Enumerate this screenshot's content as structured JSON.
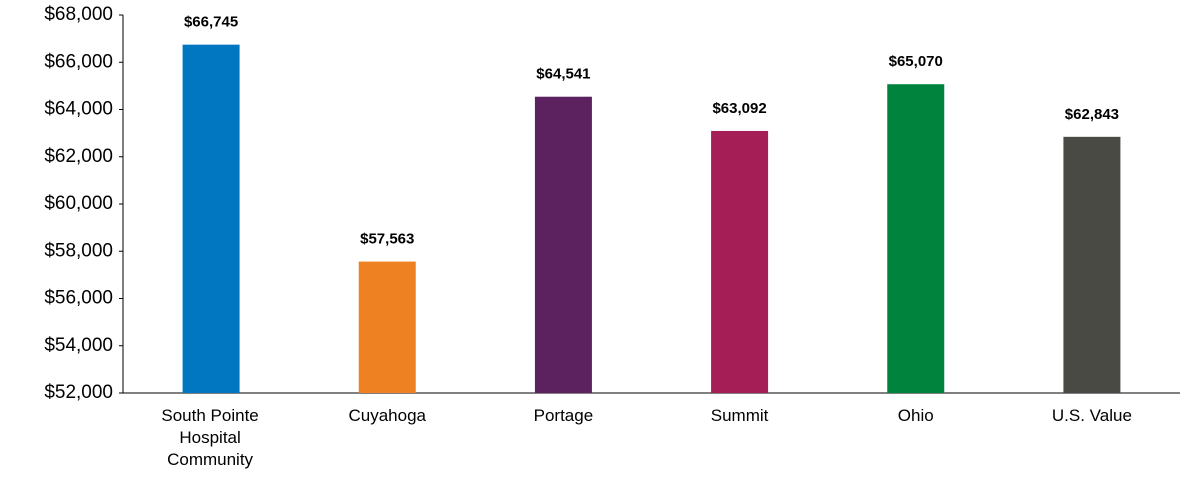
{
  "chart_data": {
    "type": "bar",
    "categories": [
      "South Pointe Hospital Community",
      "Cuyahoga",
      "Portage",
      "Summit",
      "Ohio",
      "U.S. Value"
    ],
    "values": [
      66745,
      57563,
      64541,
      63092,
      65070,
      62843
    ],
    "value_labels": [
      "$66,745",
      "$57,563",
      "$64,541",
      "$63,092",
      "$65,070",
      "$62,843"
    ],
    "colors": [
      "#0077c0",
      "#ee8223",
      "#5c2260",
      "#a51f56",
      "#00843d",
      "#4a4a45"
    ],
    "ylim": [
      52000,
      68000
    ],
    "yticks": [
      {
        "value": 52000,
        "label": "$52,000"
      },
      {
        "value": 54000,
        "label": "$54,000"
      },
      {
        "value": 56000,
        "label": "$56,000"
      },
      {
        "value": 58000,
        "label": "$58,000"
      },
      {
        "value": 60000,
        "label": "$60,000"
      },
      {
        "value": 62000,
        "label": "$62,000"
      },
      {
        "value": 64000,
        "label": "$64,000"
      },
      {
        "value": 66000,
        "label": "$66,000"
      },
      {
        "value": 68000,
        "label": "$68,000"
      }
    ],
    "grid": false
  }
}
